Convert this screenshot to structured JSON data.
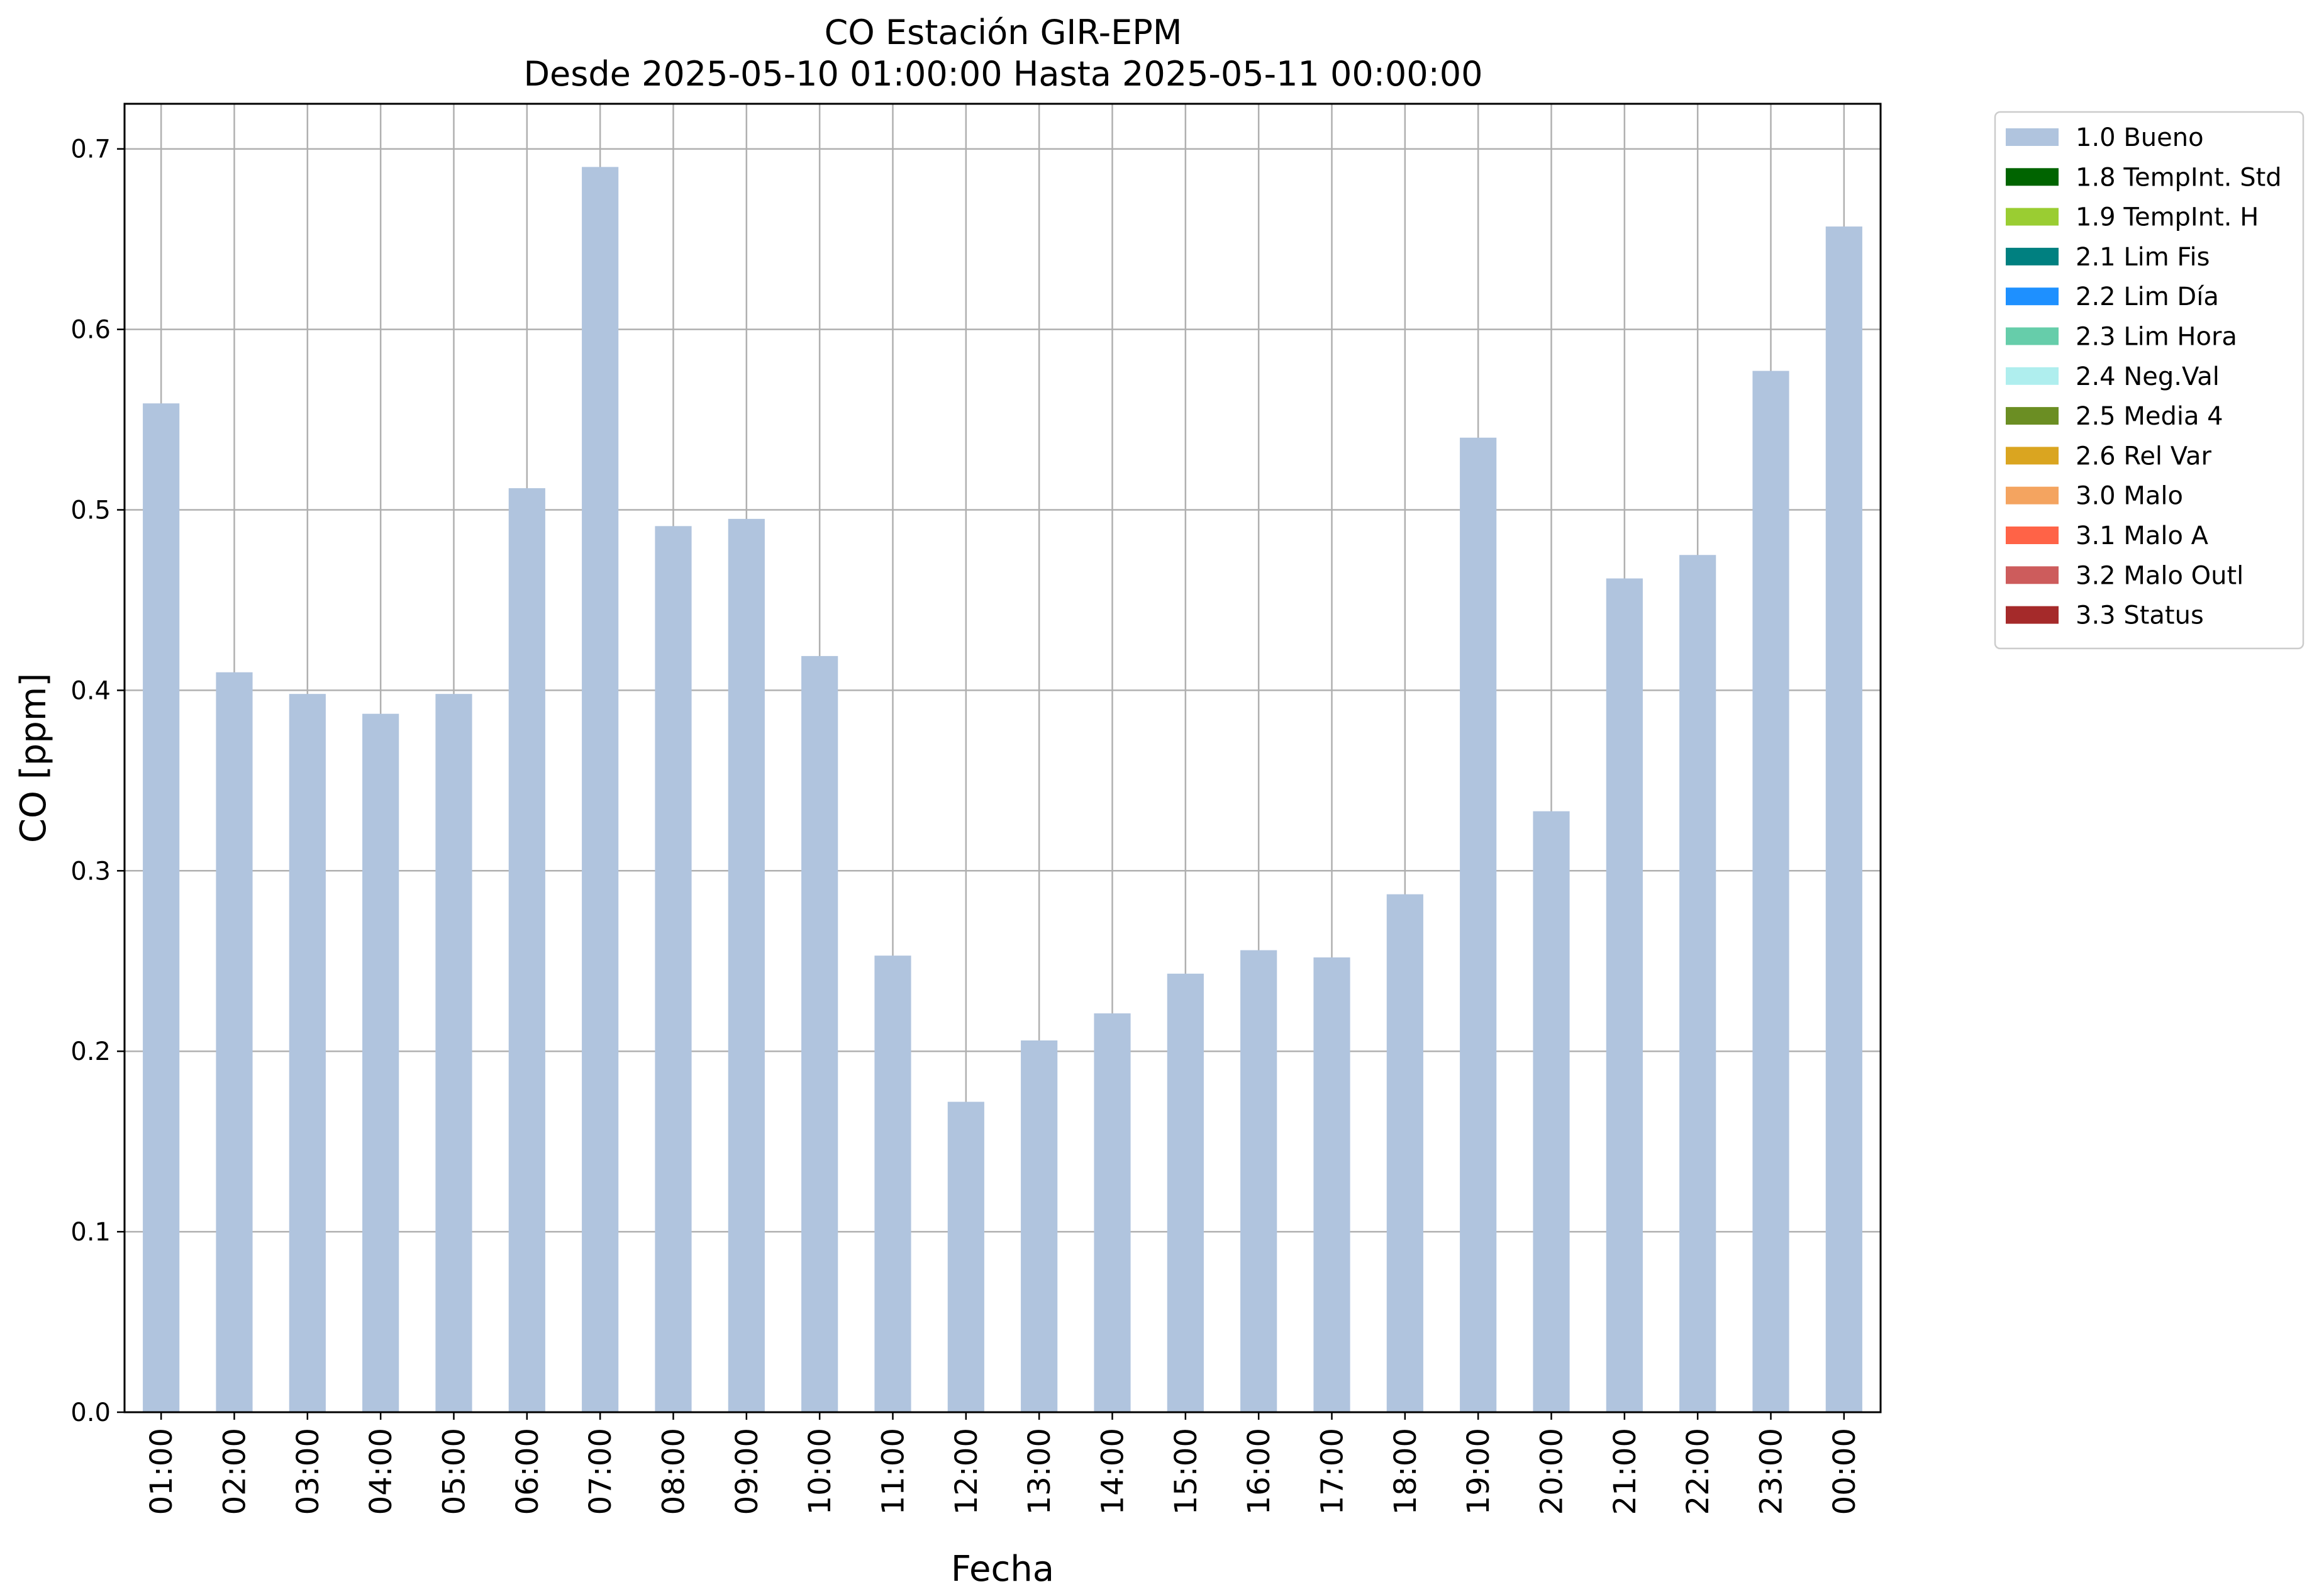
{
  "chart_data": {
    "type": "bar",
    "title": "CO Estación GIR-EPM",
    "subtitle": "Desde 2025-05-10 01:00:00 Hasta 2025-05-11 00:00:00",
    "xlabel": "Fecha",
    "ylabel": "CO [ppm]",
    "ylim": [
      0,
      0.725
    ],
    "yticks": [
      "0.0",
      "0.1",
      "0.2",
      "0.3",
      "0.4",
      "0.5",
      "0.6",
      "0.7"
    ],
    "grid": true,
    "legend_position": "outside top-right",
    "categories": [
      "01:00",
      "02:00",
      "03:00",
      "04:00",
      "05:00",
      "06:00",
      "07:00",
      "08:00",
      "09:00",
      "10:00",
      "11:00",
      "12:00",
      "13:00",
      "14:00",
      "15:00",
      "16:00",
      "17:00",
      "18:00",
      "19:00",
      "20:00",
      "21:00",
      "22:00",
      "23:00",
      "00:00"
    ],
    "series": [
      {
        "name": "1.0 Bueno",
        "color": "#b0c4de",
        "values": [
          0.559,
          0.41,
          0.398,
          0.387,
          0.398,
          0.512,
          0.69,
          0.491,
          0.495,
          0.419,
          0.253,
          0.172,
          0.206,
          0.221,
          0.243,
          0.256,
          0.252,
          0.287,
          0.54,
          0.333,
          0.462,
          0.475,
          0.577,
          0.657
        ]
      }
    ],
    "legend": [
      {
        "label": "1.0 Bueno",
        "color": "#b0c4de"
      },
      {
        "label": "1.8 TempInt. Std",
        "color": "#006400"
      },
      {
        "label": "1.9 TempInt. H",
        "color": "#9acd32"
      },
      {
        "label": "2.1 Lim Fis",
        "color": "#008080"
      },
      {
        "label": "2.2 Lim Día",
        "color": "#1e90ff"
      },
      {
        "label": "2.3 Lim Hora",
        "color": "#66cdaa"
      },
      {
        "label": "2.4 Neg.Val",
        "color": "#afeeee"
      },
      {
        "label": "2.5 Media 4",
        "color": "#6b8e23"
      },
      {
        "label": "2.6 Rel Var",
        "color": "#daa520"
      },
      {
        "label": "3.0 Malo",
        "color": "#f4a460"
      },
      {
        "label": "3.1 Malo A",
        "color": "#ff6347"
      },
      {
        "label": "3.2 Malo Outl",
        "color": "#cd5c5c"
      },
      {
        "label": "3.3 Status",
        "color": "#a52a2a"
      }
    ]
  }
}
